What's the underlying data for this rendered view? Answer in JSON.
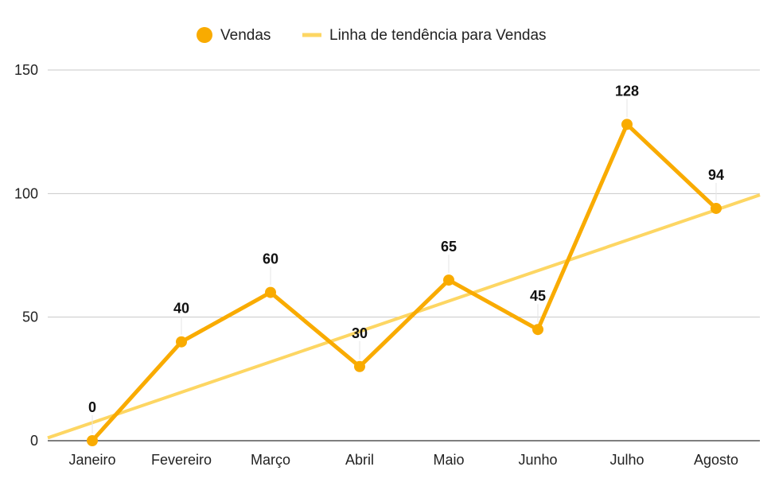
{
  "chart_data": {
    "type": "line",
    "title": "",
    "xlabel": "",
    "ylabel": "",
    "categories": [
      "Janeiro",
      "Fevereiro",
      "Março",
      "Abril",
      "Maio",
      "Junho",
      "Julho",
      "Agosto"
    ],
    "series": [
      {
        "name": "Vendas",
        "values": [
          0,
          40,
          60,
          30,
          65,
          45,
          128,
          94
        ],
        "color": "#F9AB00",
        "data_labels": [
          "0",
          "40",
          "60",
          "30",
          "65",
          "45",
          "128",
          "94"
        ]
      }
    ],
    "trendline": {
      "name": "Linha de tendência para Vendas",
      "type": "linear",
      "color": "#FDD663",
      "intercept": 7.3,
      "slope": 12.3
    },
    "y_ticks": [
      "0",
      "50",
      "100",
      "150"
    ],
    "ylim": [
      0,
      150
    ],
    "grid": true,
    "legend_position": "top-center"
  }
}
